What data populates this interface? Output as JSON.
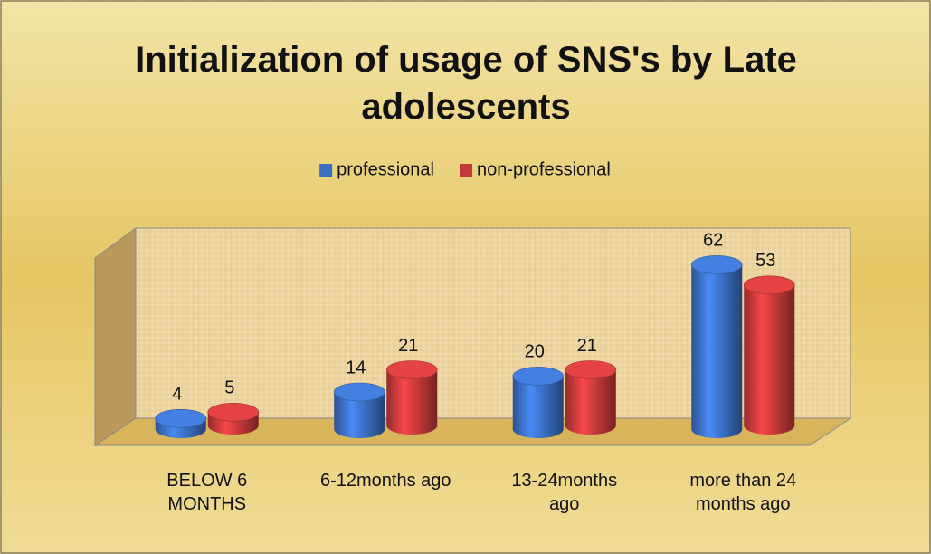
{
  "chart_data": {
    "type": "bar",
    "title": "Initialization of usage of SNS's by Late adolescents",
    "categories": [
      "BELOW 6 MONTHS",
      "6-12months ago",
      "13-24months ago",
      "more than 24 months ago"
    ],
    "series": [
      {
        "name": "professional",
        "color": "#3a6fc4",
        "values": [
          4,
          14,
          20,
          62
        ]
      },
      {
        "name": "non-professional",
        "color": "#c6393a",
        "values": [
          5,
          21,
          21,
          53
        ]
      }
    ],
    "ylim": [
      0,
      70
    ],
    "legend": "top"
  }
}
